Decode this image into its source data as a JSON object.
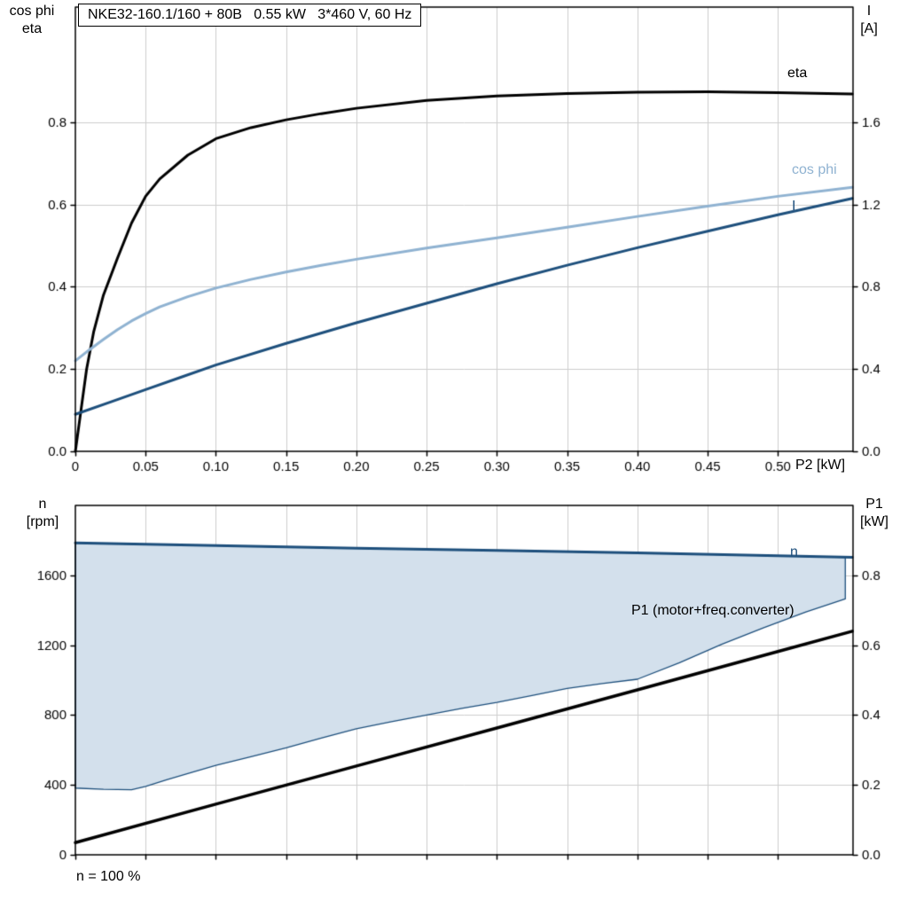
{
  "page": {
    "bg": "#ffffff",
    "grid_color": "#cdcdcd",
    "frame_color": "#000000"
  },
  "title_box": {
    "text": "NKE32-160.1/160 + 80B   0.55 kW   3*460 V, 60 Hz"
  },
  "axis_labels": {
    "top_left_line1": "cos phi",
    "top_left_line2": "eta",
    "top_right_line1": "I",
    "top_right_line2": "[A]",
    "x_axis": "P2 [kW]",
    "bot_left_line1": "n",
    "bot_left_line2": "[rpm]",
    "bot_right_line1": "P1",
    "bot_right_line2": "[kW]"
  },
  "curve_labels": {
    "eta": "eta",
    "cos_phi": "cos phi",
    "current": "I",
    "speed": "n",
    "p1": "P1 (motor+freq.converter)"
  },
  "footnote": "n = 100 %",
  "chart_data": [
    {
      "type": "line",
      "title": "NKE32-160.1/160 + 80B   0.55 kW   3*460 V, 60 Hz",
      "xlabel": "P2 [kW]",
      "ylabel_left": [
        "cos phi",
        "eta"
      ],
      "ylabel_right": [
        "I",
        "[A]"
      ],
      "xlim": [
        0,
        0.5535
      ],
      "ylim_left": [
        0,
        1.08
      ],
      "ylim_right": [
        0,
        2.16
      ],
      "grid": true,
      "xticks": {
        "values": [
          0,
          0.05,
          0.1,
          0.15,
          0.2,
          0.25,
          0.3,
          0.35,
          0.4,
          0.45,
          0.5
        ],
        "labels": [
          "0",
          "0.05",
          "0.10",
          "0.15",
          "0.20",
          "0.25",
          "0.30",
          "0.35",
          "0.40",
          "0.45",
          "0.50"
        ]
      },
      "yticks_left": {
        "values": [
          0,
          0.2,
          0.4,
          0.6,
          0.8
        ],
        "labels": [
          "0.0",
          "0.2",
          "0.4",
          "0.6",
          "0.8"
        ]
      },
      "yticks_right": {
        "values": [
          0,
          0.4,
          0.8,
          1.2,
          1.6
        ],
        "labels": [
          "0.0",
          "0.4",
          "0.8",
          "1.2",
          "1.6"
        ]
      },
      "series": [
        {
          "name": "eta",
          "axis": "left",
          "color": "#000000",
          "width": 3,
          "points": [
            [
              0,
              0
            ],
            [
              0.004,
              0.1
            ],
            [
              0.008,
              0.2
            ],
            [
              0.013,
              0.29
            ],
            [
              0.02,
              0.38
            ],
            [
              0.03,
              0.47
            ],
            [
              0.04,
              0.555
            ],
            [
              0.05,
              0.62
            ],
            [
              0.06,
              0.662
            ],
            [
              0.08,
              0.72
            ],
            [
              0.1,
              0.76
            ],
            [
              0.125,
              0.787
            ],
            [
              0.15,
              0.806
            ],
            [
              0.175,
              0.821
            ],
            [
              0.2,
              0.834
            ],
            [
              0.25,
              0.853
            ],
            [
              0.3,
              0.864
            ],
            [
              0.35,
              0.87
            ],
            [
              0.4,
              0.873
            ],
            [
              0.45,
              0.874
            ],
            [
              0.5,
              0.872
            ],
            [
              0.553,
              0.869
            ]
          ]
        },
        {
          "name": "cos phi",
          "axis": "left",
          "color": "#8fb2d1",
          "width": 3,
          "points": [
            [
              0,
              0.22
            ],
            [
              0.01,
              0.247
            ],
            [
              0.02,
              0.272
            ],
            [
              0.03,
              0.296
            ],
            [
              0.04,
              0.317
            ],
            [
              0.05,
              0.335
            ],
            [
              0.06,
              0.351
            ],
            [
              0.08,
              0.376
            ],
            [
              0.1,
              0.397
            ],
            [
              0.125,
              0.418
            ],
            [
              0.15,
              0.436
            ],
            [
              0.175,
              0.452
            ],
            [
              0.2,
              0.467
            ],
            [
              0.25,
              0.494
            ],
            [
              0.3,
              0.519
            ],
            [
              0.35,
              0.545
            ],
            [
              0.4,
              0.571
            ],
            [
              0.45,
              0.596
            ],
            [
              0.5,
              0.62
            ],
            [
              0.553,
              0.642
            ]
          ]
        },
        {
          "name": "I",
          "axis": "right",
          "color": "#1d4f7c",
          "width": 3,
          "points": [
            [
              0,
              0.18
            ],
            [
              0.025,
              0.24
            ],
            [
              0.05,
              0.3
            ],
            [
              0.075,
              0.36
            ],
            [
              0.1,
              0.42
            ],
            [
              0.15,
              0.525
            ],
            [
              0.2,
              0.625
            ],
            [
              0.25,
              0.72
            ],
            [
              0.3,
              0.815
            ],
            [
              0.35,
              0.905
            ],
            [
              0.4,
              0.99
            ],
            [
              0.45,
              1.07
            ],
            [
              0.5,
              1.15
            ],
            [
              0.553,
              1.23
            ]
          ]
        }
      ]
    },
    {
      "type": "line",
      "title": "",
      "xlabel": "",
      "ylabel_left": [
        "n",
        "[rpm]"
      ],
      "ylabel_right": [
        "P1",
        "[kW]"
      ],
      "xlim": [
        0,
        0.5535
      ],
      "ylim_left": [
        0,
        2000
      ],
      "ylim_right": [
        0,
        1.0
      ],
      "grid": true,
      "xticks": {
        "values": [
          0,
          0.05,
          0.1,
          0.15,
          0.2,
          0.25,
          0.3,
          0.35,
          0.4,
          0.45,
          0.5
        ],
        "labels": []
      },
      "yticks_left": {
        "values": [
          0,
          400,
          800,
          1200,
          1600
        ],
        "labels": [
          "0",
          "400",
          "800",
          "1200",
          "1600"
        ]
      },
      "yticks_right": {
        "values": [
          0,
          0.2,
          0.4,
          0.6,
          0.8
        ],
        "labels": [
          "0.0",
          "0.2",
          "0.4",
          "0.6",
          "0.8"
        ]
      },
      "band": {
        "name": "speed-control-range",
        "fill": "#d3e0ec",
        "edge": "#1d4f7c",
        "edge_width": 1.3,
        "lower": [
          [
            0,
            382
          ],
          [
            0.02,
            375
          ],
          [
            0.04,
            372
          ],
          [
            0.05,
            392
          ],
          [
            0.065,
            430
          ],
          [
            0.08,
            465
          ],
          [
            0.1,
            512
          ],
          [
            0.125,
            562
          ],
          [
            0.15,
            612
          ],
          [
            0.175,
            668
          ],
          [
            0.2,
            722
          ],
          [
            0.225,
            762
          ],
          [
            0.25,
            800
          ],
          [
            0.275,
            838
          ],
          [
            0.3,
            872
          ],
          [
            0.325,
            912
          ],
          [
            0.35,
            952
          ],
          [
            0.375,
            980
          ],
          [
            0.4,
            1005
          ],
          [
            0.43,
            1100
          ],
          [
            0.46,
            1205
          ],
          [
            0.49,
            1300
          ],
          [
            0.52,
            1390
          ],
          [
            0.548,
            1465
          ]
        ],
        "upper": [
          [
            0,
            1785
          ],
          [
            0.1,
            1770
          ],
          [
            0.2,
            1755
          ],
          [
            0.3,
            1742
          ],
          [
            0.4,
            1728
          ],
          [
            0.5,
            1712
          ],
          [
            0.548,
            1703
          ]
        ]
      },
      "series": [
        {
          "name": "n",
          "axis": "left",
          "color": "#1d4f7c",
          "width": 3,
          "points": [
            [
              0,
              1785
            ],
            [
              0.1,
              1770
            ],
            [
              0.2,
              1755
            ],
            [
              0.3,
              1742
            ],
            [
              0.4,
              1728
            ],
            [
              0.5,
              1712
            ],
            [
              0.553,
              1703
            ]
          ]
        },
        {
          "name": "P1 (motor+freq.converter)",
          "axis": "right",
          "color": "#000000",
          "width": 3.5,
          "points": [
            [
              0,
              0.035
            ],
            [
              0.1,
              0.145
            ],
            [
              0.2,
              0.254
            ],
            [
              0.3,
              0.363
            ],
            [
              0.4,
              0.472
            ],
            [
              0.5,
              0.582
            ],
            [
              0.553,
              0.64
            ]
          ]
        }
      ]
    }
  ]
}
